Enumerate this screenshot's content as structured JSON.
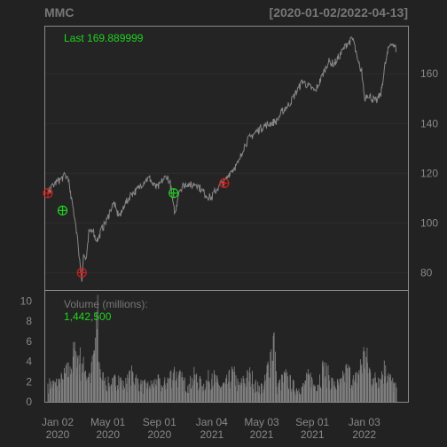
{
  "header": {
    "symbol": "MMC",
    "date_range": "[2020-01-02/2022-04-13]"
  },
  "price_panel": {
    "last_label": "Last 169.889999"
  },
  "volume_panel": {
    "label": "Volume (millions):",
    "value": "1,442,500"
  },
  "colors": {
    "background": "#222222",
    "panel": "#242424",
    "border": "#8a8a8a",
    "grid": "#2e2e2e",
    "price_line": "#888888",
    "volume_bar": "#7f7f7f",
    "green": "#1fd31f",
    "red": "#cc1f1f"
  },
  "chart_data": {
    "type": "line",
    "ylabel": "",
    "xlabel": "",
    "price_ylim": [
      73,
      179
    ],
    "price_yticks": [
      80,
      100,
      120,
      140,
      160
    ],
    "x_ticks": [
      {
        "line1": "Jan 02",
        "line2": "2020",
        "date": "2020-01-02"
      },
      {
        "line1": "May 01",
        "line2": "2020",
        "date": "2020-05-01"
      },
      {
        "line1": "Sep 01",
        "line2": "2020",
        "date": "2020-09-01"
      },
      {
        "line1": "Jan 04",
        "line2": "2021",
        "date": "2021-01-04"
      },
      {
        "line1": "May 03",
        "line2": "2021",
        "date": "2021-05-03"
      },
      {
        "line1": "Sep 01",
        "line2": "2021",
        "date": "2021-09-01"
      },
      {
        "line1": "Jan 03",
        "line2": "2022",
        "date": "2022-01-03"
      }
    ],
    "price_series": {
      "name": "MMC",
      "points": [
        [
          "2020-01-02",
          112
        ],
        [
          "2020-01-10",
          114
        ],
        [
          "2020-01-20",
          116
        ],
        [
          "2020-01-28",
          117
        ],
        [
          "2020-02-05",
          118
        ],
        [
          "2020-02-12",
          119
        ],
        [
          "2020-02-20",
          118
        ],
        [
          "2020-02-24",
          112
        ],
        [
          "2020-03-02",
          106
        ],
        [
          "2020-03-09",
          99
        ],
        [
          "2020-03-16",
          88
        ],
        [
          "2020-03-20",
          82
        ],
        [
          "2020-03-23",
          77
        ],
        [
          "2020-03-27",
          87
        ],
        [
          "2020-04-03",
          85
        ],
        [
          "2020-04-09",
          96
        ],
        [
          "2020-04-17",
          98
        ],
        [
          "2020-04-24",
          94
        ],
        [
          "2020-05-01",
          93
        ],
        [
          "2020-05-08",
          97
        ],
        [
          "2020-05-15",
          99
        ],
        [
          "2020-05-22",
          101
        ],
        [
          "2020-06-01",
          106
        ],
        [
          "2020-06-08",
          108
        ],
        [
          "2020-06-15",
          104
        ],
        [
          "2020-06-24",
          103
        ],
        [
          "2020-07-01",
          107
        ],
        [
          "2020-07-10",
          109
        ],
        [
          "2020-07-20",
          112
        ],
        [
          "2020-08-01",
          113
        ],
        [
          "2020-08-10",
          115
        ],
        [
          "2020-08-20",
          117
        ],
        [
          "2020-09-01",
          118
        ],
        [
          "2020-09-10",
          115
        ],
        [
          "2020-09-20",
          114
        ],
        [
          "2020-10-01",
          117
        ],
        [
          "2020-10-12",
          119
        ],
        [
          "2020-10-20",
          116
        ],
        [
          "2020-10-28",
          106
        ],
        [
          "2020-11-02",
          104
        ],
        [
          "2020-11-09",
          113
        ],
        [
          "2020-11-20",
          115
        ],
        [
          "2020-12-01",
          116
        ],
        [
          "2020-12-10",
          115
        ],
        [
          "2020-12-20",
          116
        ],
        [
          "2021-01-04",
          113
        ],
        [
          "2021-01-15",
          111
        ],
        [
          "2021-01-27",
          110
        ],
        [
          "2021-02-01",
          112
        ],
        [
          "2021-02-10",
          114
        ],
        [
          "2021-02-20",
          116
        ],
        [
          "2021-03-01",
          117
        ],
        [
          "2021-03-10",
          120
        ],
        [
          "2021-03-20",
          122
        ],
        [
          "2021-04-01",
          124
        ],
        [
          "2021-04-12",
          130
        ],
        [
          "2021-04-26",
          134
        ],
        [
          "2021-05-03",
          135
        ],
        [
          "2021-05-15",
          137
        ],
        [
          "2021-06-01",
          139
        ],
        [
          "2021-06-15",
          140
        ],
        [
          "2021-07-01",
          141
        ],
        [
          "2021-07-15",
          145
        ],
        [
          "2021-08-01",
          148
        ],
        [
          "2021-08-15",
          152
        ],
        [
          "2021-09-01",
          157
        ],
        [
          "2021-09-15",
          155
        ],
        [
          "2021-10-01",
          153
        ],
        [
          "2021-10-15",
          158
        ],
        [
          "2021-11-01",
          165
        ],
        [
          "2021-11-15",
          164
        ],
        [
          "2021-12-01",
          168
        ],
        [
          "2021-12-15",
          172
        ],
        [
          "2021-12-31",
          174
        ],
        [
          "2022-01-10",
          165
        ],
        [
          "2022-01-20",
          161
        ],
        [
          "2022-01-27",
          150
        ],
        [
          "2022-02-03",
          152
        ],
        [
          "2022-02-15",
          150
        ],
        [
          "2022-02-24",
          149
        ],
        [
          "2022-03-07",
          152
        ],
        [
          "2022-03-15",
          162
        ],
        [
          "2022-03-25",
          170
        ],
        [
          "2022-04-01",
          173
        ],
        [
          "2022-04-07",
          171
        ],
        [
          "2022-04-13",
          169.889999
        ]
      ]
    },
    "signals": [
      {
        "date": "2020-01-02",
        "price": 112,
        "type": "sell"
      },
      {
        "date": "2020-02-06",
        "price": 105,
        "type": "buy"
      },
      {
        "date": "2020-03-23",
        "price": 80,
        "type": "sell"
      },
      {
        "date": "2020-10-28",
        "price": 112,
        "type": "buy"
      },
      {
        "date": "2021-02-26",
        "price": 116,
        "type": "sell"
      }
    ],
    "volume_ylim": [
      0,
      11
    ],
    "volume_yticks": [
      0,
      2,
      4,
      6,
      8,
      10
    ],
    "volume_series": {
      "unit": "millions",
      "points": [
        [
          "2020-01-02",
          1.8
        ],
        [
          "2020-01-20",
          1.9
        ],
        [
          "2020-02-05",
          2.3
        ],
        [
          "2020-02-24",
          3.5
        ],
        [
          "2020-03-02",
          4.5
        ],
        [
          "2020-03-09",
          5.0
        ],
        [
          "2020-03-16",
          4.6
        ],
        [
          "2020-03-23",
          3.8
        ],
        [
          "2020-04-01",
          3.1
        ],
        [
          "2020-04-14",
          2.8
        ],
        [
          "2020-04-28",
          7.2
        ],
        [
          "2020-04-30",
          10.6
        ],
        [
          "2020-05-01",
          4.0
        ],
        [
          "2020-05-15",
          2.1
        ],
        [
          "2020-06-01",
          1.7
        ],
        [
          "2020-06-19",
          2.6
        ],
        [
          "2020-07-01",
          1.6
        ],
        [
          "2020-07-23",
          2.9
        ],
        [
          "2020-08-10",
          1.7
        ],
        [
          "2020-09-01",
          1.6
        ],
        [
          "2020-09-18",
          2.2
        ],
        [
          "2020-10-01",
          1.5
        ],
        [
          "2020-10-29",
          3.2
        ],
        [
          "2020-11-09",
          2.6
        ],
        [
          "2020-12-01",
          1.6
        ],
        [
          "2020-12-18",
          2.7
        ],
        [
          "2021-01-04",
          1.6
        ],
        [
          "2021-01-28",
          2.8
        ],
        [
          "2021-02-15",
          1.6
        ],
        [
          "2021-03-01",
          1.8
        ],
        [
          "2021-03-19",
          3.0
        ],
        [
          "2021-04-01",
          1.6
        ],
        [
          "2021-04-29",
          2.8
        ],
        [
          "2021-05-15",
          1.5
        ],
        [
          "2021-06-01",
          1.6
        ],
        [
          "2021-06-25",
          6.9
        ],
        [
          "2021-07-01",
          1.5
        ],
        [
          "2021-07-22",
          2.6
        ],
        [
          "2021-08-15",
          1.4
        ],
        [
          "2021-09-01",
          1.5
        ],
        [
          "2021-09-17",
          2.7
        ],
        [
          "2021-10-01",
          1.6
        ],
        [
          "2021-10-21",
          3.5
        ],
        [
          "2021-11-15",
          1.7
        ],
        [
          "2021-12-01",
          1.9
        ],
        [
          "2021-12-17",
          3.3
        ],
        [
          "2022-01-03",
          2.0
        ],
        [
          "2022-01-27",
          5.0
        ],
        [
          "2022-02-15",
          2.3
        ],
        [
          "2022-03-01",
          2.4
        ],
        [
          "2022-03-18",
          3.6
        ],
        [
          "2022-04-01",
          2.1
        ],
        [
          "2022-04-13",
          1.4
        ]
      ]
    }
  }
}
